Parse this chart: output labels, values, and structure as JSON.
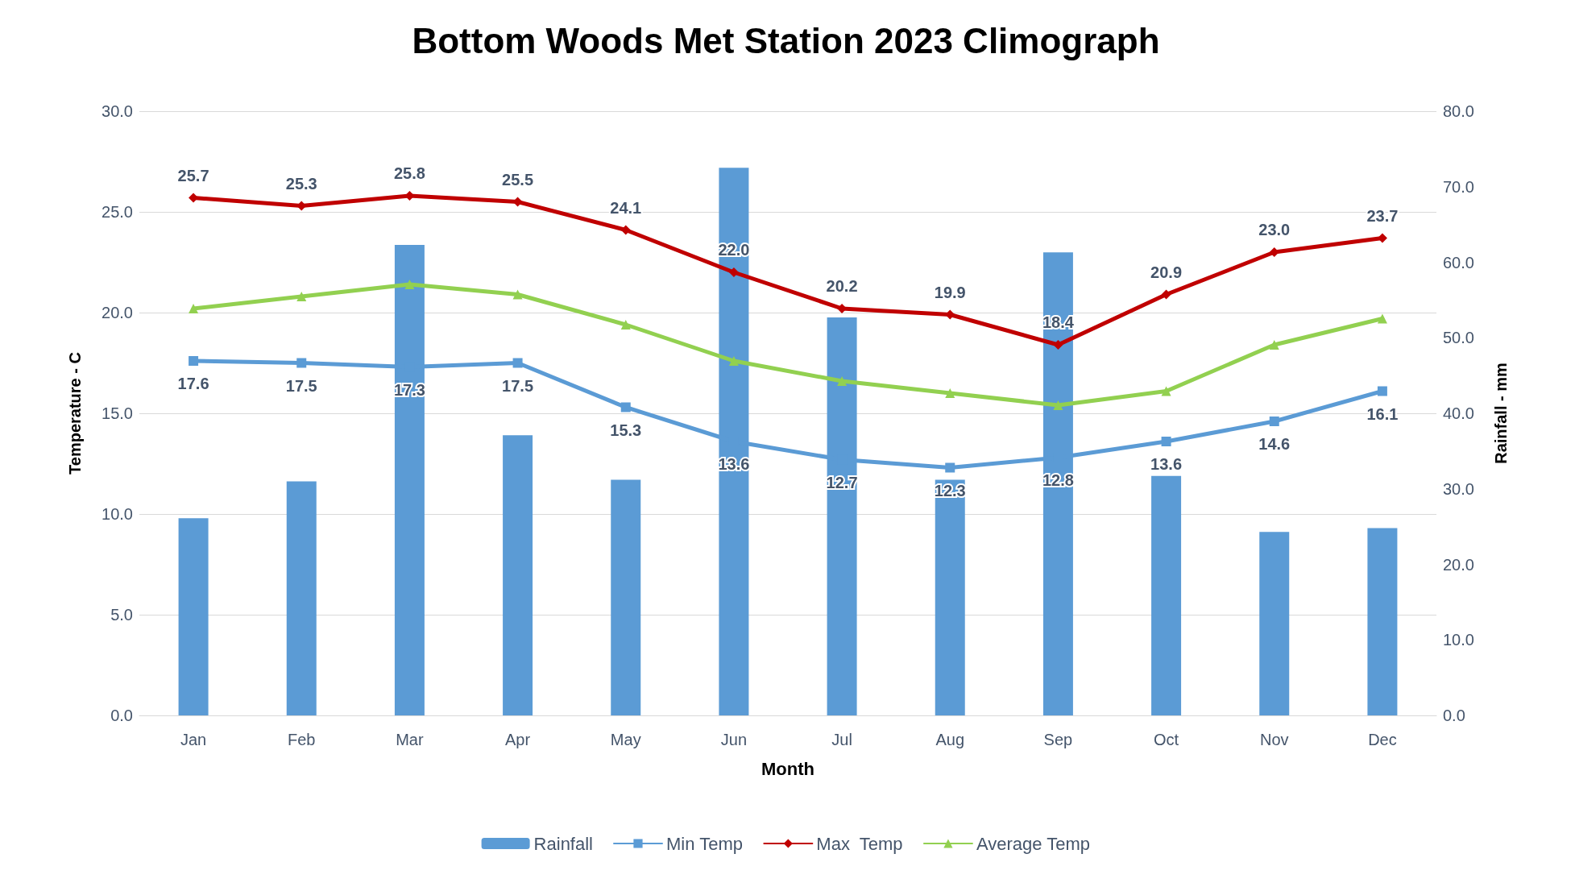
{
  "chart_data": {
    "type": "bar",
    "title": "Bottom Woods Met Station 2023 Climograph",
    "xlabel": "Month",
    "ylabel": "Temperature - C",
    "y2label": "Rainfall - mm",
    "categories": [
      "Jan",
      "Feb",
      "Mar",
      "Apr",
      "May",
      "Jun",
      "Jul",
      "Aug",
      "Sep",
      "Oct",
      "Nov",
      "Dec"
    ],
    "series": [
      {
        "name": "Rainfall",
        "axis": "y2",
        "color": "#5b9bd5",
        "values": [
          26.1,
          31.0,
          62.3,
          37.1,
          31.2,
          72.5,
          52.7,
          31.2,
          61.3,
          31.7,
          24.3,
          24.8
        ]
      },
      {
        "name": "Min Temp",
        "type": "line",
        "color": "#5b9bd5",
        "marker": "square",
        "values": [
          17.6,
          17.5,
          17.3,
          17.5,
          15.3,
          13.6,
          12.7,
          12.3,
          12.8,
          13.6,
          14.6,
          16.1
        ],
        "value_labels": [
          "17.6",
          "17.5",
          "17.3",
          "17.5",
          "15.3",
          "13.6",
          "12.7",
          "12.3",
          "12.8",
          "13.6",
          "14.6",
          "16.1"
        ]
      },
      {
        "name": "Max  Temp",
        "type": "line",
        "color": "#c00000",
        "marker": "diamond",
        "values": [
          25.7,
          25.3,
          25.8,
          25.5,
          24.1,
          22.0,
          20.2,
          19.9,
          18.4,
          20.9,
          23.0,
          23.7
        ],
        "value_labels": [
          "25.7",
          "25.3",
          "25.8",
          "25.5",
          "24.1",
          "22.0",
          "20.2",
          "19.9",
          "18.4",
          "20.9",
          "23.0",
          "23.7"
        ]
      },
      {
        "name": "Average Temp",
        "type": "line",
        "color": "#92d050",
        "marker": "triangle",
        "values": [
          20.2,
          20.8,
          21.4,
          20.9,
          19.4,
          17.6,
          16.6,
          16.0,
          15.4,
          16.1,
          18.4,
          19.7
        ]
      }
    ],
    "ylim": [
      0,
      30
    ],
    "yticks": [
      {
        "value": 0,
        "label": "0.0"
      },
      {
        "value": 5,
        "label": "5.0"
      },
      {
        "value": 10,
        "label": "10.0"
      },
      {
        "value": 15,
        "label": "15.0"
      },
      {
        "value": 20,
        "label": "20.0"
      },
      {
        "value": 25,
        "label": "25.0"
      },
      {
        "value": 30,
        "label": "30.0"
      }
    ],
    "y2lim": [
      0,
      80
    ],
    "y2ticks": [
      {
        "value": 0,
        "label": "0.0"
      },
      {
        "value": 10,
        "label": "10.0"
      },
      {
        "value": 20,
        "label": "20.0"
      },
      {
        "value": 30,
        "label": "30.0"
      },
      {
        "value": 40,
        "label": "40.0"
      },
      {
        "value": 50,
        "label": "50.0"
      },
      {
        "value": 60,
        "label": "60.0"
      },
      {
        "value": 70,
        "label": "70.0"
      },
      {
        "value": 80,
        "label": "80.0"
      }
    ],
    "grid": "y",
    "legend": "bottom"
  }
}
